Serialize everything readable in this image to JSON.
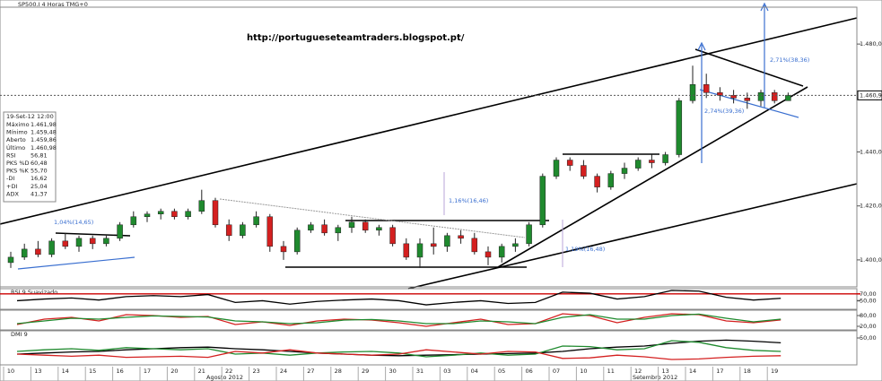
{
  "chart_data": [
    {
      "type": "candlestick",
      "title": "SP500.I 4 Horas TMG+0",
      "subtitle": "http://portugueseteamtraders.blogspot.pt/",
      "categories": [
        "10",
        null,
        "13",
        null,
        "14",
        null,
        "15",
        null,
        "16",
        null,
        "17",
        null,
        "20",
        null,
        "21",
        null,
        "22",
        null,
        "23",
        null,
        "24",
        null,
        "27",
        null,
        "28",
        null,
        "29",
        null,
        "30",
        null,
        "31",
        null,
        "03",
        null,
        "04",
        null,
        "05",
        null,
        "06",
        null,
        "07",
        null,
        "10",
        null,
        "11",
        null,
        "12",
        null,
        "13",
        null,
        "14",
        null,
        "17",
        null,
        "18",
        null,
        "19",
        null
      ],
      "months": [
        "Agosto 2012",
        "Setembro 2012"
      ],
      "open": [
        1399,
        1401,
        1404,
        1402,
        1407,
        1405,
        1408,
        1406,
        1408,
        1413,
        1416,
        1417,
        1418,
        1416,
        1418,
        1422,
        1413,
        1409,
        1413,
        1416,
        1405,
        1403,
        1411,
        1413,
        1410,
        1412,
        1414,
        1411,
        1412,
        1406,
        1401,
        1406,
        1405,
        1409,
        1408,
        1403,
        1401,
        1405,
        1406,
        1413,
        1431,
        1437,
        1435,
        1431,
        1427,
        1432,
        1434,
        1437,
        1436,
        1439,
        1459,
        1465,
        1462,
        1461,
        1460,
        1459,
        1462,
        1459
      ],
      "high": [
        1403,
        1406,
        1407,
        1408,
        1410,
        1409,
        1409,
        1409,
        1414,
        1418,
        1418,
        1419,
        1419,
        1419,
        1426,
        1423,
        1415,
        1414,
        1418,
        1417,
        1407,
        1412,
        1414,
        1415,
        1413,
        1416,
        1415,
        1413,
        1413,
        1408,
        1408,
        1412,
        1410,
        1411,
        1410,
        1405,
        1406,
        1408,
        1414,
        1432,
        1438,
        1438,
        1437,
        1432,
        1433,
        1436,
        1438,
        1439,
        1440,
        1460,
        1472,
        1469,
        1464,
        1463,
        1462,
        1463,
        1463,
        1462
      ],
      "low": [
        1397,
        1400,
        1401,
        1401,
        1404,
        1403,
        1404,
        1405,
        1407,
        1412,
        1414,
        1415,
        1415,
        1415,
        1417,
        1412,
        1407,
        1408,
        1412,
        1403,
        1400,
        1402,
        1410,
        1409,
        1407,
        1410,
        1410,
        1409,
        1405,
        1400,
        1397,
        1402,
        1403,
        1406,
        1402,
        1398,
        1399,
        1403,
        1405,
        1412,
        1430,
        1433,
        1430,
        1425,
        1426,
        1430,
        1433,
        1434,
        1435,
        1438,
        1458,
        1460,
        1459,
        1458,
        1456,
        1457,
        1458,
        1459
      ],
      "close": [
        1401,
        1404,
        1402,
        1407,
        1405,
        1408,
        1406,
        1408,
        1413,
        1416,
        1417,
        1418,
        1416,
        1418,
        1422,
        1413,
        1409,
        1413,
        1416,
        1405,
        1403,
        1411,
        1413,
        1410,
        1412,
        1414,
        1411,
        1412,
        1406,
        1401,
        1406,
        1405,
        1409,
        1408,
        1403,
        1401,
        1405,
        1406,
        1413,
        1431,
        1437,
        1435,
        1431,
        1427,
        1432,
        1434,
        1437,
        1436,
        1439,
        1459,
        1465,
        1462,
        1461,
        1460,
        1459,
        1462,
        1459,
        1461
      ],
      "up_color": "#1f8a2e",
      "down_color": "#d42020",
      "ylim": [
        1390,
        1493
      ],
      "yticks": [
        {
          "value": 1400,
          "label": "1.400,00"
        },
        {
          "value": 1420,
          "label": "1.420,00"
        },
        {
          "value": 1440,
          "label": "1.440,00"
        },
        {
          "value": 1460,
          "label": "1.460,00"
        },
        {
          "value": 1480,
          "label": "1.480,00"
        }
      ],
      "last_price": {
        "value": 1460.98,
        "label": "1.460,98"
      },
      "annotations": [
        "1,04%(14,65)",
        "1,16%(16,46)",
        "1,19%(16,48)",
        "2,71%(38,36)",
        "2,74%(39,36)"
      ],
      "info": {
        "date": "19-Set-12 12:00",
        "rows": [
          [
            "Máximo",
            "1.461,98"
          ],
          [
            "Mínimo",
            "1.459,48"
          ],
          [
            "Aberto",
            "1.459,86"
          ],
          [
            "Último",
            "1.460,98"
          ],
          [
            "RSI",
            "56,81"
          ],
          [
            "PKS %D",
            "60,48"
          ],
          [
            "PKS %K",
            "55,70"
          ],
          [
            "-DI",
            "16,62"
          ],
          [
            "+DI",
            "25,04"
          ],
          [
            "ADX",
            "41,37"
          ]
        ]
      }
    },
    {
      "type": "line",
      "title": "RSI 9 Suavizado",
      "ylim": [
        25,
        80
      ],
      "yticks": [
        {
          "value": 70,
          "label": "70,00"
        },
        {
          "value": 50,
          "label": "50,00"
        }
      ],
      "series": [
        {
          "color": "#000000",
          "values": [
            50,
            55,
            58,
            52,
            62,
            65,
            62,
            68,
            45,
            50,
            40,
            48,
            52,
            55,
            50,
            38,
            45,
            50,
            42,
            45,
            75,
            72,
            55,
            62,
            80,
            78,
            60,
            52,
            57
          ]
        }
      ]
    },
    {
      "type": "line",
      "ylim": [
        0,
        100
      ],
      "yticks": [
        {
          "value": 80,
          "label": "80,00"
        },
        {
          "value": 20,
          "label": "20,00"
        }
      ],
      "series": [
        {
          "color": "#d42020",
          "values": [
            30,
            60,
            70,
            50,
            85,
            80,
            70,
            75,
            30,
            45,
            25,
            50,
            60,
            55,
            40,
            20,
            40,
            60,
            30,
            35,
            90,
            80,
            40,
            70,
            90,
            85,
            50,
            40,
            56
          ]
        },
        {
          "color": "#1f8a2e",
          "values": [
            35,
            50,
            65,
            60,
            70,
            78,
            75,
            72,
            50,
            45,
            35,
            40,
            55,
            58,
            50,
            35,
            35,
            50,
            45,
            35,
            70,
            85,
            60,
            60,
            80,
            88,
            65,
            45,
            60
          ]
        }
      ]
    },
    {
      "type": "line",
      "title": "DMI 9",
      "ylim": [
        0,
        60
      ],
      "yticks": [
        {
          "value": 50,
          "label": "50,00"
        }
      ],
      "series": [
        {
          "color": "#000000",
          "values": [
            20,
            22,
            24,
            25,
            28,
            30,
            32,
            33,
            30,
            28,
            25,
            22,
            20,
            18,
            17,
            18,
            19,
            20,
            21,
            22,
            25,
            30,
            33,
            35,
            40,
            44,
            46,
            44,
            41
          ]
        },
        {
          "color": "#1f8a2e",
          "values": [
            25,
            28,
            30,
            27,
            32,
            30,
            28,
            30,
            20,
            22,
            18,
            22,
            24,
            25,
            22,
            15,
            18,
            22,
            18,
            20,
            35,
            34,
            28,
            30,
            45,
            42,
            32,
            27,
            25
          ]
        },
        {
          "color": "#d42020",
          "values": [
            20,
            18,
            16,
            18,
            14,
            15,
            16,
            14,
            25,
            22,
            28,
            22,
            20,
            18,
            20,
            28,
            24,
            20,
            25,
            24,
            12,
            13,
            18,
            15,
            10,
            11,
            14,
            16,
            17
          ]
        }
      ]
    }
  ]
}
